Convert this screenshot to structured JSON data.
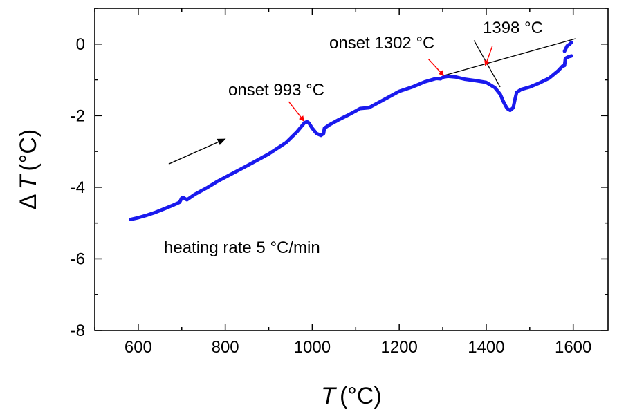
{
  "chart_data": {
    "type": "line",
    "title": "",
    "xlabel": {
      "symbol": "T",
      "unit": "(°C)"
    },
    "ylabel": {
      "delta": "Δ",
      "symbol": "T",
      "unit": "(°C)"
    },
    "xlim": [
      500,
      1680
    ],
    "ylim": [
      -8,
      1
    ],
    "xticks": [
      600,
      800,
      1000,
      1200,
      1400,
      1600
    ],
    "yticks": [
      0,
      -2,
      -4,
      -6,
      -8
    ],
    "xtick_labels": [
      "600",
      "800",
      "1000",
      "1200",
      "1400",
      "1600"
    ],
    "ytick_labels": [
      "0",
      "-2",
      "-4",
      "-6",
      "-8"
    ],
    "grid": false,
    "series": [
      {
        "color": "#1a1aee",
        "points": [
          [
            582,
            -4.9
          ],
          [
            600,
            -4.85
          ],
          [
            620,
            -4.78
          ],
          [
            640,
            -4.7
          ],
          [
            660,
            -4.6
          ],
          [
            680,
            -4.5
          ],
          [
            695,
            -4.42
          ],
          [
            700,
            -4.3
          ],
          [
            705,
            -4.3
          ],
          [
            712,
            -4.35
          ],
          [
            730,
            -4.2
          ],
          [
            760,
            -4.0
          ],
          [
            780,
            -3.85
          ],
          [
            800,
            -3.72
          ],
          [
            850,
            -3.4
          ],
          [
            900,
            -3.07
          ],
          [
            940,
            -2.75
          ],
          [
            965,
            -2.45
          ],
          [
            982,
            -2.2
          ],
          [
            988,
            -2.17
          ],
          [
            992,
            -2.2
          ],
          [
            1000,
            -2.35
          ],
          [
            1010,
            -2.5
          ],
          [
            1020,
            -2.55
          ],
          [
            1026,
            -2.5
          ],
          [
            1028,
            -2.35
          ],
          [
            1040,
            -2.25
          ],
          [
            1060,
            -2.12
          ],
          [
            1080,
            -2.0
          ],
          [
            1100,
            -1.87
          ],
          [
            1110,
            -1.8
          ],
          [
            1130,
            -1.78
          ],
          [
            1150,
            -1.65
          ],
          [
            1180,
            -1.45
          ],
          [
            1200,
            -1.32
          ],
          [
            1230,
            -1.2
          ],
          [
            1260,
            -1.05
          ],
          [
            1285,
            -0.96
          ],
          [
            1295,
            -0.97
          ],
          [
            1302,
            -0.92
          ],
          [
            1312,
            -0.9
          ],
          [
            1330,
            -0.92
          ],
          [
            1350,
            -0.98
          ],
          [
            1375,
            -1.02
          ],
          [
            1400,
            -1.07
          ],
          [
            1420,
            -1.22
          ],
          [
            1432,
            -1.4
          ],
          [
            1440,
            -1.62
          ],
          [
            1448,
            -1.8
          ],
          [
            1455,
            -1.85
          ],
          [
            1462,
            -1.78
          ],
          [
            1466,
            -1.55
          ],
          [
            1470,
            -1.35
          ],
          [
            1480,
            -1.27
          ],
          [
            1500,
            -1.2
          ],
          [
            1520,
            -1.1
          ],
          [
            1545,
            -0.95
          ],
          [
            1565,
            -0.75
          ],
          [
            1575,
            -0.62
          ],
          [
            1580,
            -0.6
          ],
          [
            1582,
            -0.4
          ],
          [
            1590,
            -0.35
          ],
          [
            1596,
            -0.33
          ]
        ]
      },
      {
        "color": "#1a1aee",
        "points": [
          [
            1580,
            -0.2
          ],
          [
            1586,
            -0.05
          ],
          [
            1592,
            0.0
          ],
          [
            1596,
            0.05
          ]
        ]
      }
    ],
    "tangent_lines": [
      {
        "from": [
          1302,
          -0.88
        ],
        "to": [
          1605,
          0.15
        ]
      },
      {
        "from": [
          1372,
          0.1
        ],
        "to": [
          1432,
          -1.2
        ]
      }
    ],
    "annotations": [
      {
        "text": "onset 993 °C",
        "arrow_to": [
          981,
          -2.15
        ],
        "color": "#ff0000"
      },
      {
        "text": "onset 1302 °C",
        "arrow_to": [
          1302,
          -0.88
        ],
        "color": "#ff0000"
      },
      {
        "text": "1398 °C",
        "arrow_to": [
          1398,
          -0.6
        ],
        "color": "#ff0000"
      },
      {
        "text": "heating rate 5 °C/min"
      }
    ],
    "direction_arrow": {
      "from": [
        670,
        -3.35
      ],
      "to": [
        800,
        -2.65
      ],
      "color": "#000000"
    }
  }
}
